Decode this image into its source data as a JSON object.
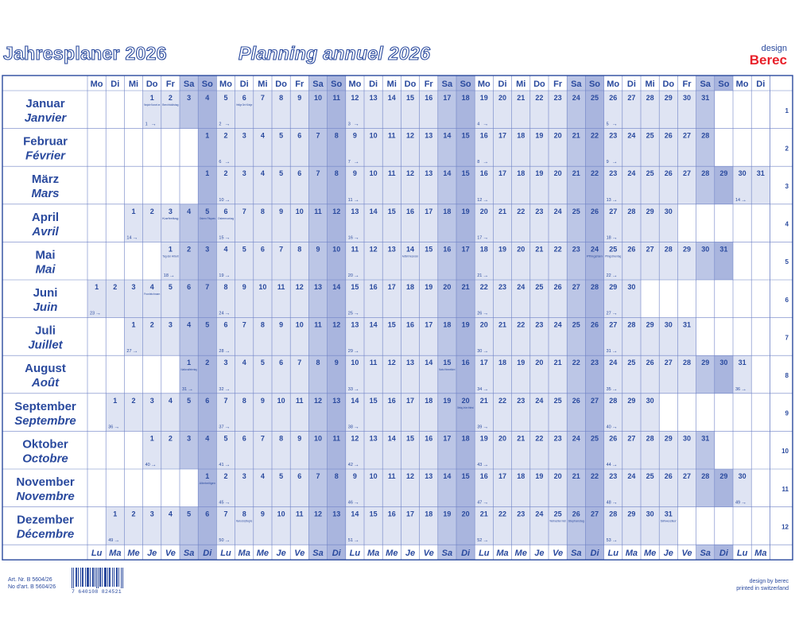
{
  "header": {
    "title_de": "Jahresplaner 2026",
    "title_fr": "Planning annuel 2026",
    "logo_design": "design",
    "logo_brand": "Berec"
  },
  "weekdays_top": [
    "Mo",
    "Di",
    "Mi",
    "Do",
    "Fr",
    "Sa",
    "So"
  ],
  "weekdays_bottom": [
    "Lu",
    "Ma",
    "Me",
    "Je",
    "Ve",
    "Sa",
    "Di"
  ],
  "months": [
    {
      "de": "Januar",
      "fr": "Janvier",
      "num": "1",
      "start_offset": 3,
      "days": 31,
      "week_marks": [
        {
          "day": 1,
          "label": "1"
        },
        {
          "day": 5,
          "label": "2"
        },
        {
          "day": 12,
          "label": "3"
        },
        {
          "day": 19,
          "label": "4"
        },
        {
          "day": 26,
          "label": "5"
        }
      ],
      "notes": [
        {
          "day": 1,
          "text": "Neujahr Nouvel an"
        },
        {
          "day": 2,
          "text": "Berchtoldstag"
        },
        {
          "day": 6,
          "text": "Heilige Drei Könige"
        }
      ]
    },
    {
      "de": "Februar",
      "fr": "Février",
      "num": "2",
      "start_offset": 6,
      "days": 28,
      "week_marks": [
        {
          "day": 2,
          "label": "6"
        },
        {
          "day": 9,
          "label": "7"
        },
        {
          "day": 16,
          "label": "8"
        },
        {
          "day": 23,
          "label": "9"
        }
      ],
      "notes": []
    },
    {
      "de": "März",
      "fr": "Mars",
      "num": "3",
      "start_offset": 6,
      "days": 31,
      "week_marks": [
        {
          "day": 2,
          "label": "10"
        },
        {
          "day": 9,
          "label": "11"
        },
        {
          "day": 16,
          "label": "12"
        },
        {
          "day": 23,
          "label": "13"
        },
        {
          "day": 30,
          "label": "14"
        }
      ],
      "notes": []
    },
    {
      "de": "April",
      "fr": "Avril",
      "num": "4",
      "start_offset": 2,
      "days": 30,
      "week_marks": [
        {
          "day": 1,
          "label": "14"
        },
        {
          "day": 6,
          "label": "15"
        },
        {
          "day": 13,
          "label": "16"
        },
        {
          "day": 20,
          "label": "17"
        },
        {
          "day": 27,
          "label": "18"
        }
      ],
      "notes": [
        {
          "day": 3,
          "text": "Karfreitag"
        },
        {
          "day": 5,
          "text": "Ostern Pâques"
        },
        {
          "day": 6,
          "text": "Ostermontag"
        }
      ]
    },
    {
      "de": "Mai",
      "fr": "Mai",
      "num": "5",
      "start_offset": 4,
      "days": 31,
      "week_marks": [
        {
          "day": 1,
          "label": "18"
        },
        {
          "day": 4,
          "label": "19"
        },
        {
          "day": 11,
          "label": "20"
        },
        {
          "day": 18,
          "label": "21"
        },
        {
          "day": 25,
          "label": "22"
        }
      ],
      "notes": [
        {
          "day": 1,
          "text": "Tag der Arbeit"
        },
        {
          "day": 14,
          "text": "Auffahrt Ascension"
        },
        {
          "day": 24,
          "text": "Pfingsten"
        },
        {
          "day": 25,
          "text": "Pfingstmontag"
        }
      ]
    },
    {
      "de": "Juni",
      "fr": "Juin",
      "num": "6",
      "start_offset": 0,
      "days": 30,
      "week_marks": [
        {
          "day": 1,
          "label": "23"
        },
        {
          "day": 8,
          "label": "24"
        },
        {
          "day": 15,
          "label": "25"
        },
        {
          "day": 22,
          "label": "26"
        },
        {
          "day": 29,
          "label": "27"
        }
      ],
      "notes": [
        {
          "day": 4,
          "text": "Fronleichnam"
        }
      ]
    },
    {
      "de": "Juli",
      "fr": "Juillet",
      "num": "7",
      "start_offset": 2,
      "days": 31,
      "week_marks": [
        {
          "day": 1,
          "label": "27"
        },
        {
          "day": 6,
          "label": "28"
        },
        {
          "day": 13,
          "label": "29"
        },
        {
          "day": 20,
          "label": "30"
        },
        {
          "day": 27,
          "label": "31"
        }
      ],
      "notes": []
    },
    {
      "de": "August",
      "fr": "Août",
      "num": "8",
      "start_offset": 5,
      "days": 31,
      "week_marks": [
        {
          "day": 1,
          "label": "31"
        },
        {
          "day": 3,
          "label": "32"
        },
        {
          "day": 10,
          "label": "33"
        },
        {
          "day": 17,
          "label": "34"
        },
        {
          "day": 24,
          "label": "35"
        },
        {
          "day": 31,
          "label": "36"
        }
      ],
      "notes": [
        {
          "day": 1,
          "text": "Nationalfeiertag"
        },
        {
          "day": 15,
          "text": "Maria Himmelfahrt"
        }
      ]
    },
    {
      "de": "September",
      "fr": "Septembre",
      "num": "9",
      "start_offset": 1,
      "days": 30,
      "week_marks": [
        {
          "day": 1,
          "label": "36"
        },
        {
          "day": 7,
          "label": "37"
        },
        {
          "day": 14,
          "label": "38"
        },
        {
          "day": 21,
          "label": "39"
        },
        {
          "day": 28,
          "label": "40"
        }
      ],
      "notes": [
        {
          "day": 20,
          "text": "Bettag Jeûne fédéral"
        }
      ]
    },
    {
      "de": "Oktober",
      "fr": "Octobre",
      "num": "10",
      "start_offset": 3,
      "days": 31,
      "week_marks": [
        {
          "day": 1,
          "label": "40"
        },
        {
          "day": 5,
          "label": "41"
        },
        {
          "day": 12,
          "label": "42"
        },
        {
          "day": 19,
          "label": "43"
        },
        {
          "day": 26,
          "label": "44"
        }
      ],
      "notes": []
    },
    {
      "de": "November",
      "fr": "Novembre",
      "num": "11",
      "start_offset": 6,
      "days": 30,
      "week_marks": [
        {
          "day": 2,
          "label": "45"
        },
        {
          "day": 9,
          "label": "46"
        },
        {
          "day": 16,
          "label": "47"
        },
        {
          "day": 23,
          "label": "48"
        },
        {
          "day": 30,
          "label": "49"
        }
      ],
      "notes": [
        {
          "day": 1,
          "text": "Allerheiligen"
        }
      ]
    },
    {
      "de": "Dezember",
      "fr": "Décembre",
      "num": "12",
      "start_offset": 1,
      "days": 31,
      "week_marks": [
        {
          "day": 1,
          "label": "49"
        },
        {
          "day": 7,
          "label": "50"
        },
        {
          "day": 14,
          "label": "51"
        },
        {
          "day": 21,
          "label": "52"
        },
        {
          "day": 28,
          "label": "53"
        }
      ],
      "notes": [
        {
          "day": 8,
          "text": "Maria Empfängnis"
        },
        {
          "day": 25,
          "text": "Weihnachten Noël"
        },
        {
          "day": 26,
          "text": "Stephanstag"
        },
        {
          "day": 31,
          "text": "Silvester"
        }
      ]
    }
  ],
  "footer": {
    "art_de": "Art. Nr. B 5604/26",
    "art_fr": "No d'art. B 5604/26",
    "barcode_digits": "7 640108 824521",
    "credit_1": "design by berec",
    "credit_2": "printed in switzerland"
  },
  "colors": {
    "primary": "#2a4a9e",
    "weekday_fill": "#dfe4f3",
    "saturday_fill": "#bcc6e6",
    "sunday_fill": "#a9b5de",
    "grid": "#6f82c6"
  }
}
